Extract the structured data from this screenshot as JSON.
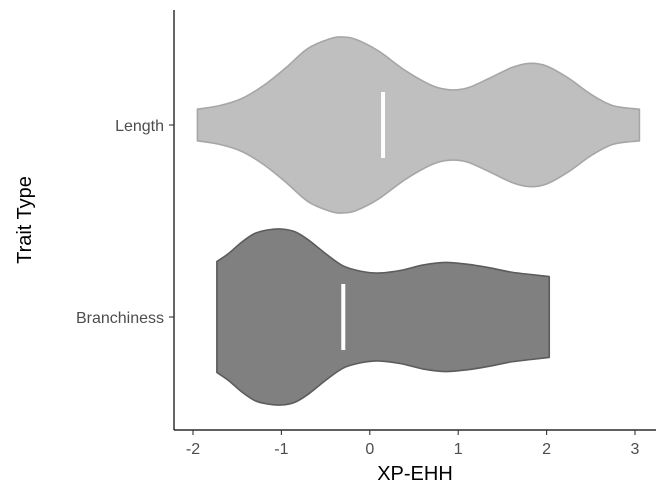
{
  "chart_data": {
    "type": "violin",
    "orientation": "horizontal",
    "xlabel": "XP-EHH",
    "ylabel": "Trait Type",
    "xlim": [
      -2.2,
      3.2
    ],
    "x_ticks": [
      -2,
      -1,
      0,
      1,
      2,
      3
    ],
    "x_tick_labels": [
      "-2",
      "-1",
      "0",
      "1",
      "2",
      "3"
    ],
    "categories": [
      "Length",
      "Branchiness"
    ],
    "grid": false,
    "legend": "none",
    "series": [
      {
        "category": "Length",
        "fill": "#bfbfbf",
        "outline": "#a6a6a6",
        "min": -1.95,
        "max": 3.05,
        "median": 0.15,
        "density_x": [
          -1.95,
          -1.7,
          -1.45,
          -1.2,
          -0.95,
          -0.7,
          -0.45,
          -0.3,
          -0.15,
          0.1,
          0.4,
          0.7,
          0.9,
          1.1,
          1.35,
          1.6,
          1.8,
          2.0,
          2.25,
          2.5,
          2.75,
          3.05
        ],
        "density_w": [
          0.18,
          0.22,
          0.3,
          0.45,
          0.65,
          0.87,
          0.98,
          1.0,
          0.97,
          0.84,
          0.62,
          0.45,
          0.4,
          0.42,
          0.53,
          0.65,
          0.7,
          0.67,
          0.53,
          0.35,
          0.22,
          0.18
        ]
      },
      {
        "category": "Branchiness",
        "fill": "#808080",
        "outline": "#5c5c5c",
        "min": -1.73,
        "max": 2.03,
        "median": -0.3,
        "density_x": [
          -1.73,
          -1.6,
          -1.45,
          -1.3,
          -1.15,
          -1.0,
          -0.85,
          -0.7,
          -0.5,
          -0.3,
          -0.1,
          0.1,
          0.35,
          0.6,
          0.85,
          1.1,
          1.35,
          1.6,
          1.85,
          2.03
        ],
        "density_w": [
          0.63,
          0.72,
          0.85,
          0.95,
          0.99,
          1.0,
          0.97,
          0.88,
          0.72,
          0.58,
          0.52,
          0.5,
          0.53,
          0.59,
          0.62,
          0.6,
          0.56,
          0.51,
          0.48,
          0.46
        ]
      }
    ]
  }
}
